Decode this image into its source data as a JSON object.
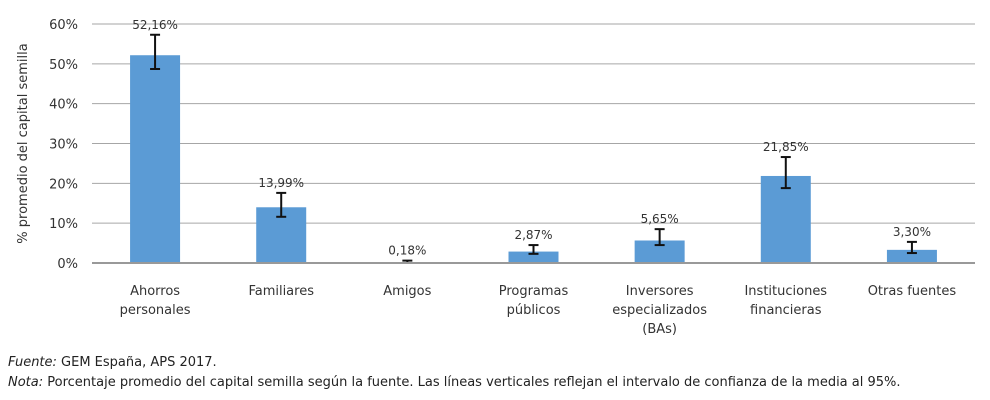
{
  "chart_data": {
    "type": "bar",
    "ylabel": "% promedio del capital semilla",
    "ylim": [
      0,
      60
    ],
    "yticks": [
      "0%",
      "10%",
      "20%",
      "30%",
      "40%",
      "50%",
      "60%"
    ],
    "grid": true,
    "categories": [
      [
        "Ahorros",
        "personales"
      ],
      [
        "Familiares"
      ],
      [
        "Amigos"
      ],
      [
        "Programas",
        "públicos"
      ],
      [
        "Inversores",
        "especializados",
        "(BAs)"
      ],
      [
        "Instituciones",
        "financieras"
      ],
      [
        "Otras fuentes"
      ]
    ],
    "values": [
      52.16,
      13.99,
      0.18,
      2.87,
      5.65,
      21.85,
      3.3
    ],
    "data_labels": [
      "52,16%",
      "13,99%",
      "0,18%",
      "2,87%",
      "5,65%",
      "21,85%",
      "3,30%"
    ],
    "error_bars": [
      [
        48.7,
        57.3
      ],
      [
        11.6,
        17.6
      ],
      [
        0,
        0.6
      ],
      [
        2.3,
        4.5
      ],
      [
        4.5,
        8.5
      ],
      [
        18.8,
        26.6
      ],
      [
        2.5,
        5.3
      ]
    ],
    "bar_color": "#5b9bd5"
  },
  "footer": {
    "fuente_label": "Fuente:",
    "fuente_text": " GEM España, APS 2017.",
    "nota_label": "Nota:",
    "nota_text": " Porcentaje promedio del capital semilla según la fuente. Las líneas verticales reflejan el intervalo de confianza de la media al 95%."
  }
}
